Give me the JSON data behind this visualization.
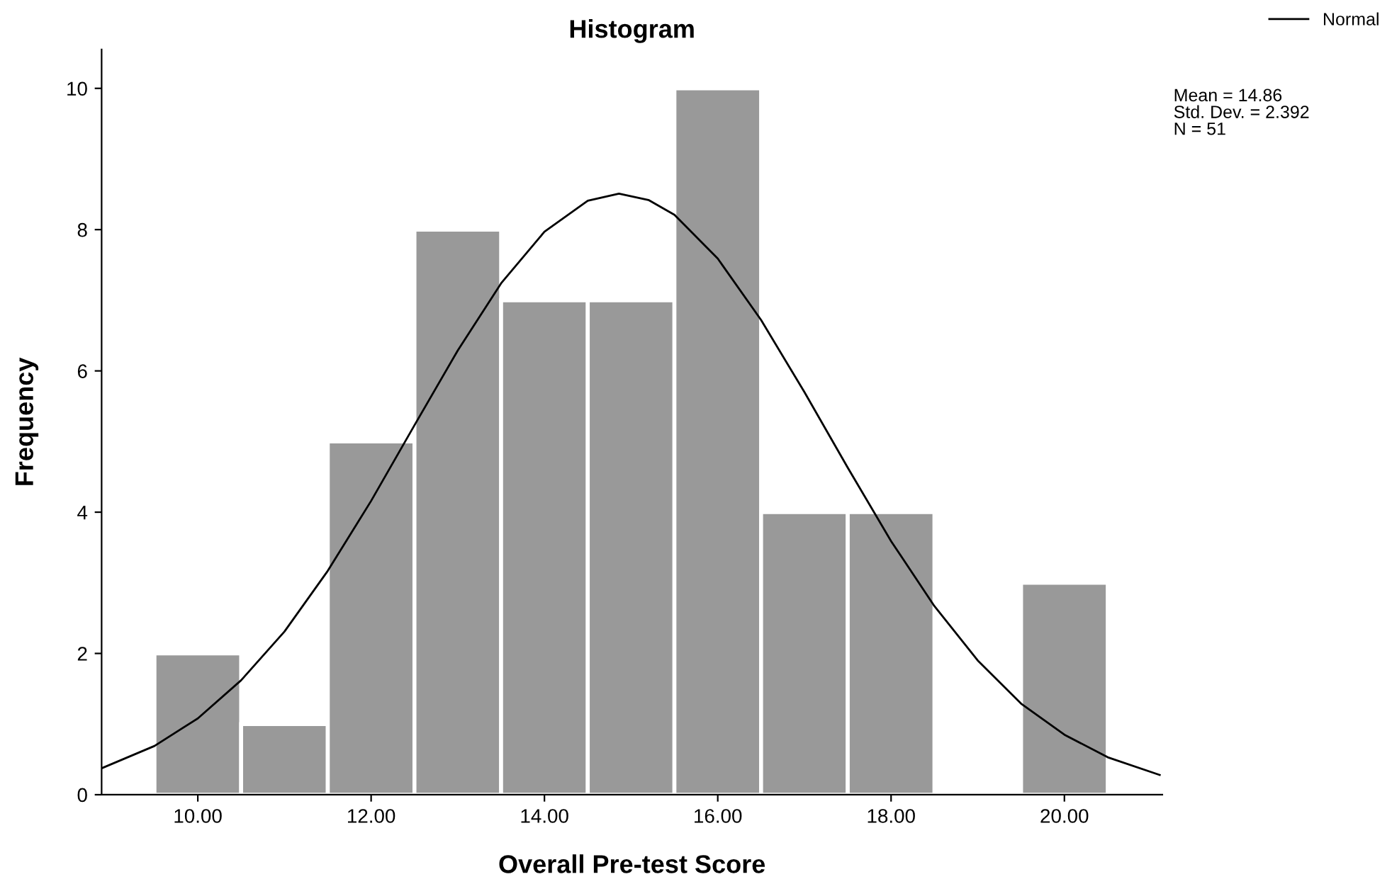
{
  "chart_data": {
    "type": "histogram",
    "title": "Histogram",
    "xlabel": "Overall Pre-test Score",
    "ylabel": "Frequency",
    "bins": [
      9.5,
      10.5,
      11.5,
      12.5,
      13.5,
      14.5,
      15.5,
      16.5,
      17.5,
      18.5,
      19.5,
      20.5
    ],
    "series": [
      {
        "color": "#999999",
        "values": [
          2,
          1,
          5,
          8,
          7,
          7,
          10,
          4,
          4,
          0,
          3
        ]
      },
      {
        "type": "line",
        "name": "Normal",
        "color": "#000000",
        "x": [
          8.9,
          9.5,
          10,
          10.5,
          11,
          11.5,
          12,
          12.5,
          13,
          13.5,
          14,
          14.5,
          14.86,
          15.2,
          15.5,
          16,
          16.5,
          17,
          17.5,
          18,
          18.5,
          19,
          19.5,
          20,
          20.5,
          21.1
        ],
        "values": [
          0.38,
          0.69,
          1.08,
          1.62,
          2.31,
          3.17,
          4.16,
          5.23,
          6.29,
          7.24,
          7.97,
          8.41,
          8.51,
          8.42,
          8.21,
          7.59,
          6.72,
          5.7,
          4.63,
          3.59,
          2.67,
          1.9,
          1.29,
          0.85,
          0.53,
          0.28
        ]
      }
    ],
    "xlim": [
      8.89,
      21.13
    ],
    "ylim": [
      0,
      10.55
    ],
    "xticks": [
      {
        "value": 10,
        "label": "10.00"
      },
      {
        "value": 12,
        "label": "12.00"
      },
      {
        "value": 14,
        "label": "14.00"
      },
      {
        "value": 16,
        "label": "16.00"
      },
      {
        "value": 18,
        "label": "18.00"
      },
      {
        "value": 20,
        "label": "20.00"
      }
    ],
    "yticks": [
      0,
      2,
      4,
      6,
      8,
      10
    ],
    "annotations": [
      "Mean = 14.86",
      "Std. Dev. = 2.392",
      "N = 51"
    ],
    "legend": "top right",
    "marker": "none",
    "line_style": "solid"
  }
}
